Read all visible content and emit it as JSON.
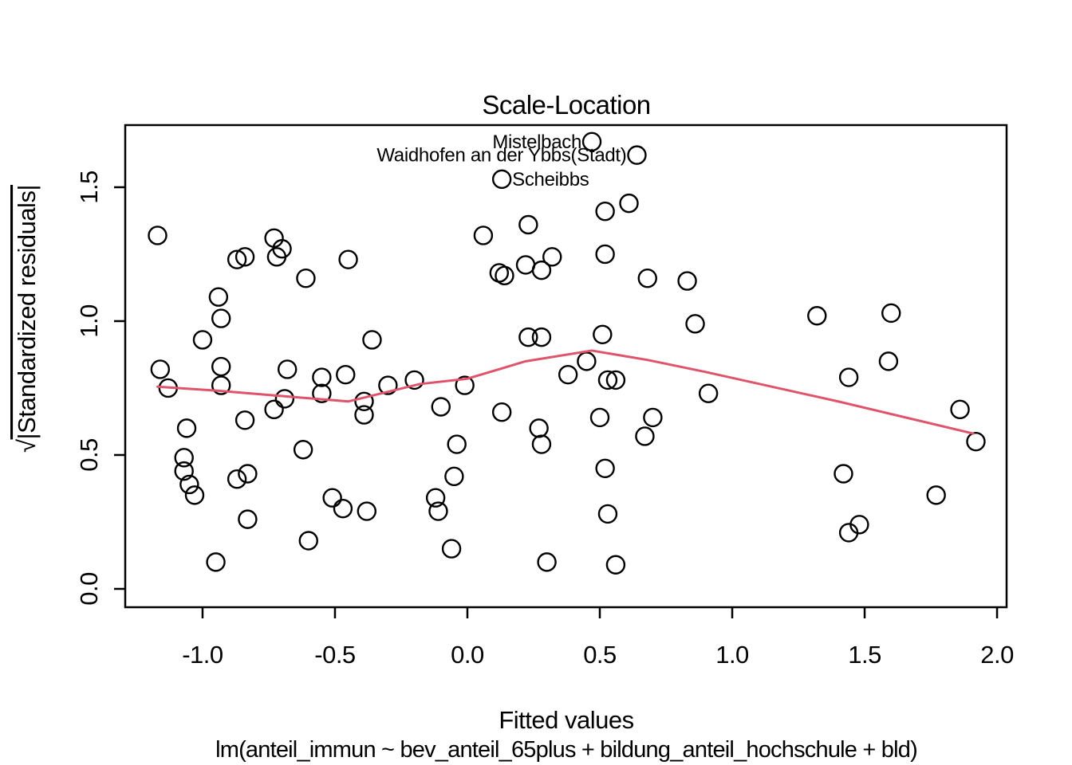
{
  "chart_data": {
    "type": "scatter",
    "title": "Scale-Location",
    "xlabel": "Fitted values",
    "subtitle": "lm(anteil_immun ~ bev_anteil_65plus + bildung_anteil_hochschule + bld)",
    "ylabel": "√|Standardized residuals|",
    "ylabel_sqrt": "√",
    "ylabel_radicand": "|Standardized residuals|",
    "xlim": [
      -1.292,
      2.036
    ],
    "ylim": [
      -0.0685,
      1.732
    ],
    "grid": false,
    "legend_position": "none",
    "point_color": "#000000",
    "smooth_color": "#DF536B",
    "x_ticks": {
      "values": [
        -1.0,
        -0.5,
        0.0,
        0.5,
        1.0,
        1.5,
        2.0
      ],
      "labels": [
        "-1.0",
        "-0.5",
        "0.0",
        "0.5",
        "1.0",
        "1.5",
        "2.0"
      ]
    },
    "y_ticks": {
      "values": [
        0.0,
        0.5,
        1.0,
        1.5
      ],
      "labels": [
        "0.0",
        "0.5",
        "1.0",
        "1.5"
      ]
    },
    "points": [
      [
        -1.17,
        1.32
      ],
      [
        -0.73,
        1.31
      ],
      [
        -0.87,
        1.23
      ],
      [
        -0.84,
        1.24
      ],
      [
        -0.72,
        1.24
      ],
      [
        -0.7,
        1.27
      ],
      [
        -0.61,
        1.16
      ],
      [
        -0.45,
        1.23
      ],
      [
        -0.94,
        1.09
      ],
      [
        -0.93,
        1.01
      ],
      [
        -1.0,
        0.93
      ],
      [
        -0.36,
        0.93
      ],
      [
        0.47,
        1.67
      ],
      [
        0.64,
        1.62
      ],
      [
        0.13,
        1.53
      ],
      [
        0.61,
        1.44
      ],
      [
        0.52,
        1.41
      ],
      [
        0.23,
        1.36
      ],
      [
        0.06,
        1.32
      ],
      [
        0.32,
        1.24
      ],
      [
        0.52,
        1.25
      ],
      [
        0.12,
        1.18
      ],
      [
        0.14,
        1.17
      ],
      [
        0.22,
        1.21
      ],
      [
        0.28,
        1.19
      ],
      [
        0.68,
        1.16
      ],
      [
        0.83,
        1.15
      ],
      [
        0.86,
        0.99
      ],
      [
        0.23,
        0.94
      ],
      [
        0.28,
        0.94
      ],
      [
        0.51,
        0.95
      ],
      [
        0.45,
        0.85
      ],
      [
        1.32,
        1.02
      ],
      [
        1.6,
        1.03
      ],
      [
        1.59,
        0.85
      ],
      [
        -1.16,
        0.82
      ],
      [
        -0.93,
        0.83
      ],
      [
        -0.68,
        0.82
      ],
      [
        -1.13,
        0.75
      ],
      [
        -0.93,
        0.76
      ],
      [
        -0.55,
        0.79
      ],
      [
        -0.55,
        0.73
      ],
      [
        -0.46,
        0.8
      ],
      [
        -0.3,
        0.76
      ],
      [
        -0.2,
        0.78
      ],
      [
        -0.69,
        0.71
      ],
      [
        -0.73,
        0.67
      ],
      [
        -0.39,
        0.7
      ],
      [
        -0.39,
        0.65
      ],
      [
        -0.84,
        0.63
      ],
      [
        -1.06,
        0.6
      ],
      [
        -1.07,
        0.49
      ],
      [
        -1.07,
        0.44
      ],
      [
        -1.05,
        0.39
      ],
      [
        -1.03,
        0.35
      ],
      [
        -0.87,
        0.41
      ],
      [
        -0.83,
        0.43
      ],
      [
        -0.62,
        0.52
      ],
      [
        -0.83,
        0.26
      ],
      [
        -0.51,
        0.34
      ],
      [
        -0.47,
        0.3
      ],
      [
        -0.38,
        0.29
      ],
      [
        -0.6,
        0.18
      ],
      [
        -0.95,
        0.1
      ],
      [
        -0.01,
        0.76
      ],
      [
        0.38,
        0.8
      ],
      [
        0.53,
        0.78
      ],
      [
        0.56,
        0.78
      ],
      [
        0.91,
        0.73
      ],
      [
        -0.1,
        0.68
      ],
      [
        0.13,
        0.66
      ],
      [
        0.27,
        0.6
      ],
      [
        0.28,
        0.54
      ],
      [
        -0.04,
        0.54
      ],
      [
        0.5,
        0.64
      ],
      [
        0.7,
        0.64
      ],
      [
        0.67,
        0.57
      ],
      [
        -0.05,
        0.42
      ],
      [
        0.52,
        0.45
      ],
      [
        -0.12,
        0.34
      ],
      [
        -0.11,
        0.29
      ],
      [
        0.53,
        0.28
      ],
      [
        -0.06,
        0.15
      ],
      [
        0.3,
        0.1
      ],
      [
        0.56,
        0.09
      ],
      [
        1.44,
        0.79
      ],
      [
        1.86,
        0.67
      ],
      [
        1.92,
        0.55
      ],
      [
        1.42,
        0.43
      ],
      [
        1.77,
        0.35
      ],
      [
        1.48,
        0.24
      ],
      [
        1.44,
        0.21
      ]
    ],
    "labeled_points": [
      {
        "label": "Mistelbach",
        "x": 0.47,
        "y": 1.67,
        "anchor": "end"
      },
      {
        "label": "Waidhofen an der Ybbs(Stadt)",
        "x": 0.64,
        "y": 1.62,
        "anchor": "end"
      },
      {
        "label": "Scheibbs",
        "x": 0.13,
        "y": 1.53,
        "anchor": "start"
      }
    ],
    "smooth_line": [
      [
        -1.17,
        0.755
      ],
      [
        -0.94,
        0.74
      ],
      [
        -0.7,
        0.72
      ],
      [
        -0.45,
        0.7
      ],
      [
        -0.18,
        0.765
      ],
      [
        0.0,
        0.785
      ],
      [
        0.22,
        0.85
      ],
      [
        0.47,
        0.89
      ],
      [
        0.68,
        0.855
      ],
      [
        0.9,
        0.81
      ],
      [
        1.4,
        0.7
      ],
      [
        1.91,
        0.58
      ]
    ]
  }
}
